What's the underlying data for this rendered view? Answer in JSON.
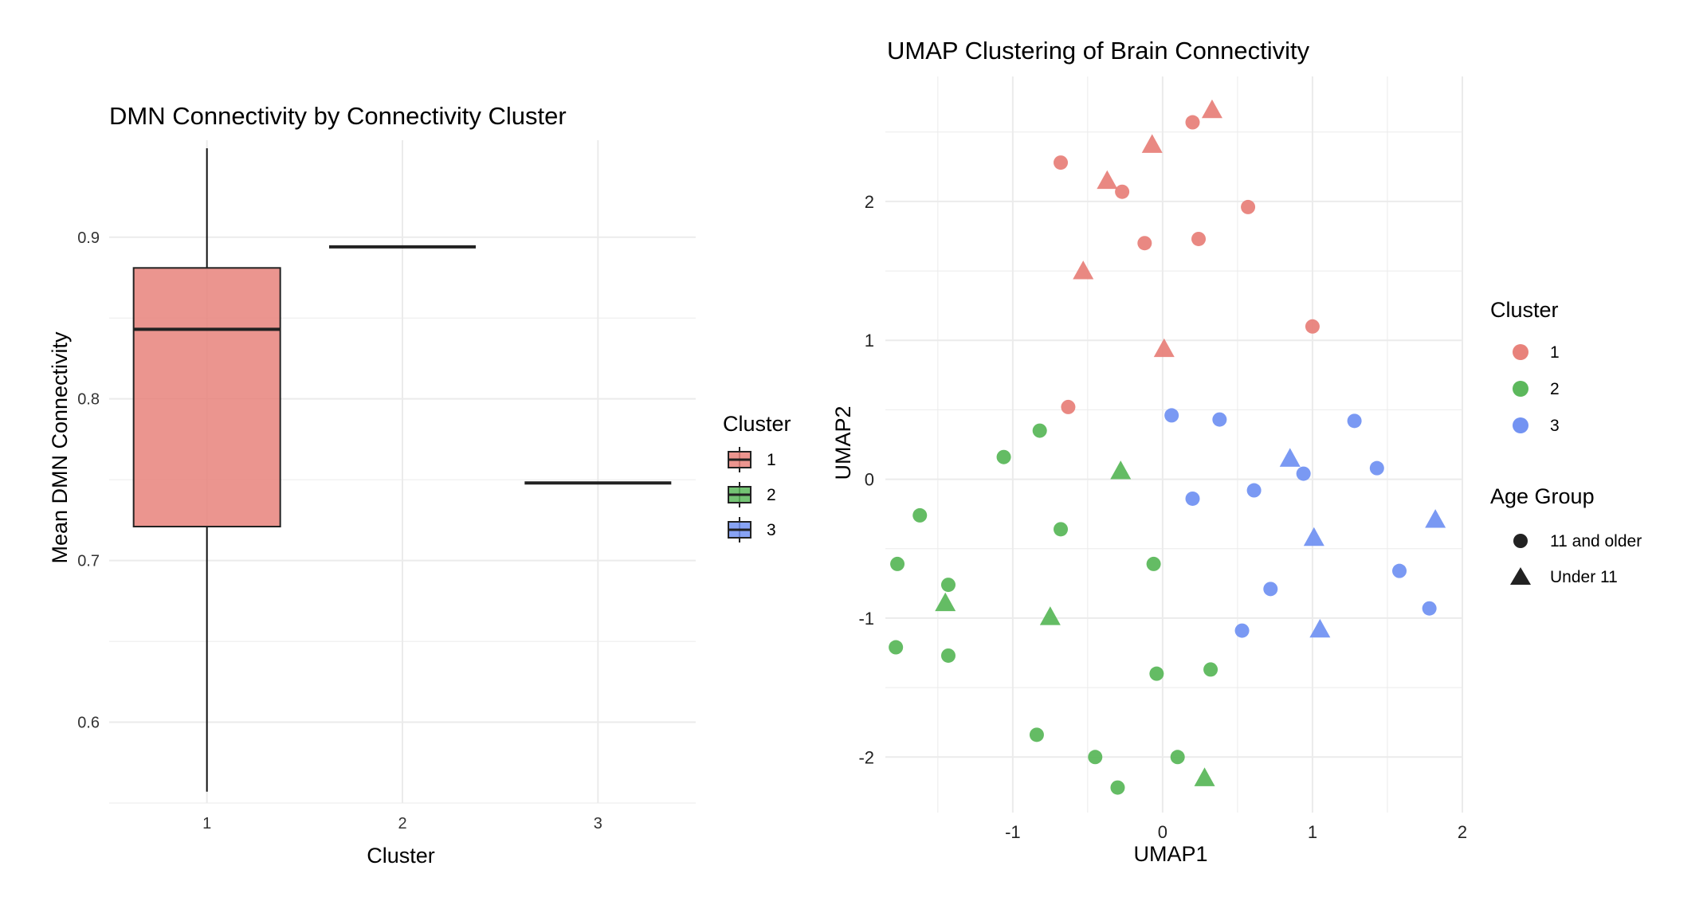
{
  "colors": {
    "cluster_1": "#E8827B",
    "cluster_2": "#5CB85C",
    "cluster_3": "#7393F2",
    "grid": "#EBEBEB",
    "ink": "#222222"
  },
  "chart_data": [
    {
      "type": "box",
      "title": "DMN Connectivity by Connectivity Cluster",
      "xlabel": "Cluster",
      "ylabel": "Mean DMN Connectivity",
      "categories": [
        "1",
        "2",
        "3"
      ],
      "ylim": [
        0.55,
        0.96
      ],
      "yticks": [
        0.6,
        0.7,
        0.8,
        0.9
      ],
      "ytick_labels": [
        "0.6",
        "0.7",
        "0.8",
        "0.9"
      ],
      "grid": true,
      "boxes": [
        {
          "cluster": "1",
          "min": 0.557,
          "q1": 0.721,
          "median": 0.843,
          "q3": 0.881,
          "max": 0.955
        },
        {
          "cluster": "2",
          "min": 0.894,
          "q1": 0.894,
          "median": 0.894,
          "q3": 0.894,
          "max": 0.894
        },
        {
          "cluster": "3",
          "min": 0.748,
          "q1": 0.748,
          "median": 0.748,
          "q3": 0.748,
          "max": 0.748
        }
      ],
      "legend": {
        "title": "Cluster",
        "entries": [
          "1",
          "2",
          "3"
        ],
        "placement": "right"
      }
    },
    {
      "type": "scatter",
      "title": "UMAP Clustering of Brain Connectivity",
      "xlabel": "UMAP1",
      "ylabel": "UMAP2",
      "xlim": [
        -1.85,
        2.0
      ],
      "ylim": [
        -2.4,
        2.9
      ],
      "xticks": [
        -1,
        0,
        1,
        2
      ],
      "xtick_labels": [
        "-1",
        "0",
        "1",
        "2"
      ],
      "yticks": [
        -2,
        -1,
        0,
        1,
        2
      ],
      "ytick_labels": [
        "-2",
        "-1",
        "0",
        "1",
        "2"
      ],
      "grid": true,
      "legend": {
        "cluster_title": "Cluster",
        "cluster_entries": [
          "1",
          "2",
          "3"
        ],
        "age_title": "Age Group",
        "age_entries": [
          "11 and older",
          "Under 11"
        ],
        "placement": "right"
      },
      "points": [
        {
          "x": 0.33,
          "y": 2.66,
          "cluster": "1",
          "age": "Under 11"
        },
        {
          "x": 0.2,
          "y": 2.57,
          "cluster": "1",
          "age": "11 and older"
        },
        {
          "x": -0.07,
          "y": 2.41,
          "cluster": "1",
          "age": "Under 11"
        },
        {
          "x": -0.68,
          "y": 2.28,
          "cluster": "1",
          "age": "11 and older"
        },
        {
          "x": -0.37,
          "y": 2.15,
          "cluster": "1",
          "age": "Under 11"
        },
        {
          "x": -0.27,
          "y": 2.07,
          "cluster": "1",
          "age": "11 and older"
        },
        {
          "x": 0.57,
          "y": 1.96,
          "cluster": "1",
          "age": "11 and older"
        },
        {
          "x": 0.24,
          "y": 1.73,
          "cluster": "1",
          "age": "11 and older"
        },
        {
          "x": -0.12,
          "y": 1.7,
          "cluster": "1",
          "age": "11 and older"
        },
        {
          "x": -0.53,
          "y": 1.5,
          "cluster": "1",
          "age": "Under 11"
        },
        {
          "x": 1.0,
          "y": 1.1,
          "cluster": "1",
          "age": "11 and older"
        },
        {
          "x": 0.01,
          "y": 0.94,
          "cluster": "1",
          "age": "Under 11"
        },
        {
          "x": -0.63,
          "y": 0.52,
          "cluster": "1",
          "age": "11 and older"
        },
        {
          "x": 0.06,
          "y": 0.46,
          "cluster": "3",
          "age": "11 and older"
        },
        {
          "x": 0.38,
          "y": 0.43,
          "cluster": "3",
          "age": "11 and older"
        },
        {
          "x": 1.28,
          "y": 0.42,
          "cluster": "3",
          "age": "11 and older"
        },
        {
          "x": 0.85,
          "y": 0.15,
          "cluster": "3",
          "age": "Under 11"
        },
        {
          "x": 1.43,
          "y": 0.08,
          "cluster": "3",
          "age": "11 and older"
        },
        {
          "x": 0.94,
          "y": 0.04,
          "cluster": "3",
          "age": "11 and older"
        },
        {
          "x": 0.61,
          "y": -0.08,
          "cluster": "3",
          "age": "11 and older"
        },
        {
          "x": 0.2,
          "y": -0.14,
          "cluster": "3",
          "age": "11 and older"
        },
        {
          "x": 1.82,
          "y": -0.29,
          "cluster": "3",
          "age": "Under 11"
        },
        {
          "x": 1.01,
          "y": -0.42,
          "cluster": "3",
          "age": "Under 11"
        },
        {
          "x": 1.58,
          "y": -0.66,
          "cluster": "3",
          "age": "11 and older"
        },
        {
          "x": 0.72,
          "y": -0.79,
          "cluster": "3",
          "age": "11 and older"
        },
        {
          "x": 1.78,
          "y": -0.93,
          "cluster": "3",
          "age": "11 and older"
        },
        {
          "x": 0.53,
          "y": -1.09,
          "cluster": "3",
          "age": "11 and older"
        },
        {
          "x": 1.05,
          "y": -1.08,
          "cluster": "3",
          "age": "Under 11"
        },
        {
          "x": -0.82,
          "y": 0.35,
          "cluster": "2",
          "age": "11 and older"
        },
        {
          "x": -1.06,
          "y": 0.16,
          "cluster": "2",
          "age": "11 and older"
        },
        {
          "x": -0.28,
          "y": 0.06,
          "cluster": "2",
          "age": "Under 11"
        },
        {
          "x": -1.62,
          "y": -0.26,
          "cluster": "2",
          "age": "11 and older"
        },
        {
          "x": -0.68,
          "y": -0.36,
          "cluster": "2",
          "age": "11 and older"
        },
        {
          "x": -1.77,
          "y": -0.61,
          "cluster": "2",
          "age": "11 and older"
        },
        {
          "x": -0.06,
          "y": -0.61,
          "cluster": "2",
          "age": "11 and older"
        },
        {
          "x": -1.43,
          "y": -0.76,
          "cluster": "2",
          "age": "11 and older"
        },
        {
          "x": -1.45,
          "y": -0.89,
          "cluster": "2",
          "age": "Under 11"
        },
        {
          "x": -0.75,
          "y": -0.99,
          "cluster": "2",
          "age": "Under 11"
        },
        {
          "x": -1.78,
          "y": -1.21,
          "cluster": "2",
          "age": "11 and older"
        },
        {
          "x": -1.43,
          "y": -1.27,
          "cluster": "2",
          "age": "11 and older"
        },
        {
          "x": 0.32,
          "y": -1.37,
          "cluster": "2",
          "age": "11 and older"
        },
        {
          "x": -0.04,
          "y": -1.4,
          "cluster": "2",
          "age": "11 and older"
        },
        {
          "x": -0.84,
          "y": -1.84,
          "cluster": "2",
          "age": "11 and older"
        },
        {
          "x": -0.45,
          "y": -2.0,
          "cluster": "2",
          "age": "11 and older"
        },
        {
          "x": 0.1,
          "y": -2.0,
          "cluster": "2",
          "age": "11 and older"
        },
        {
          "x": 0.28,
          "y": -2.15,
          "cluster": "2",
          "age": "Under 11"
        },
        {
          "x": -0.3,
          "y": -2.22,
          "cluster": "2",
          "age": "11 and older"
        }
      ]
    }
  ]
}
